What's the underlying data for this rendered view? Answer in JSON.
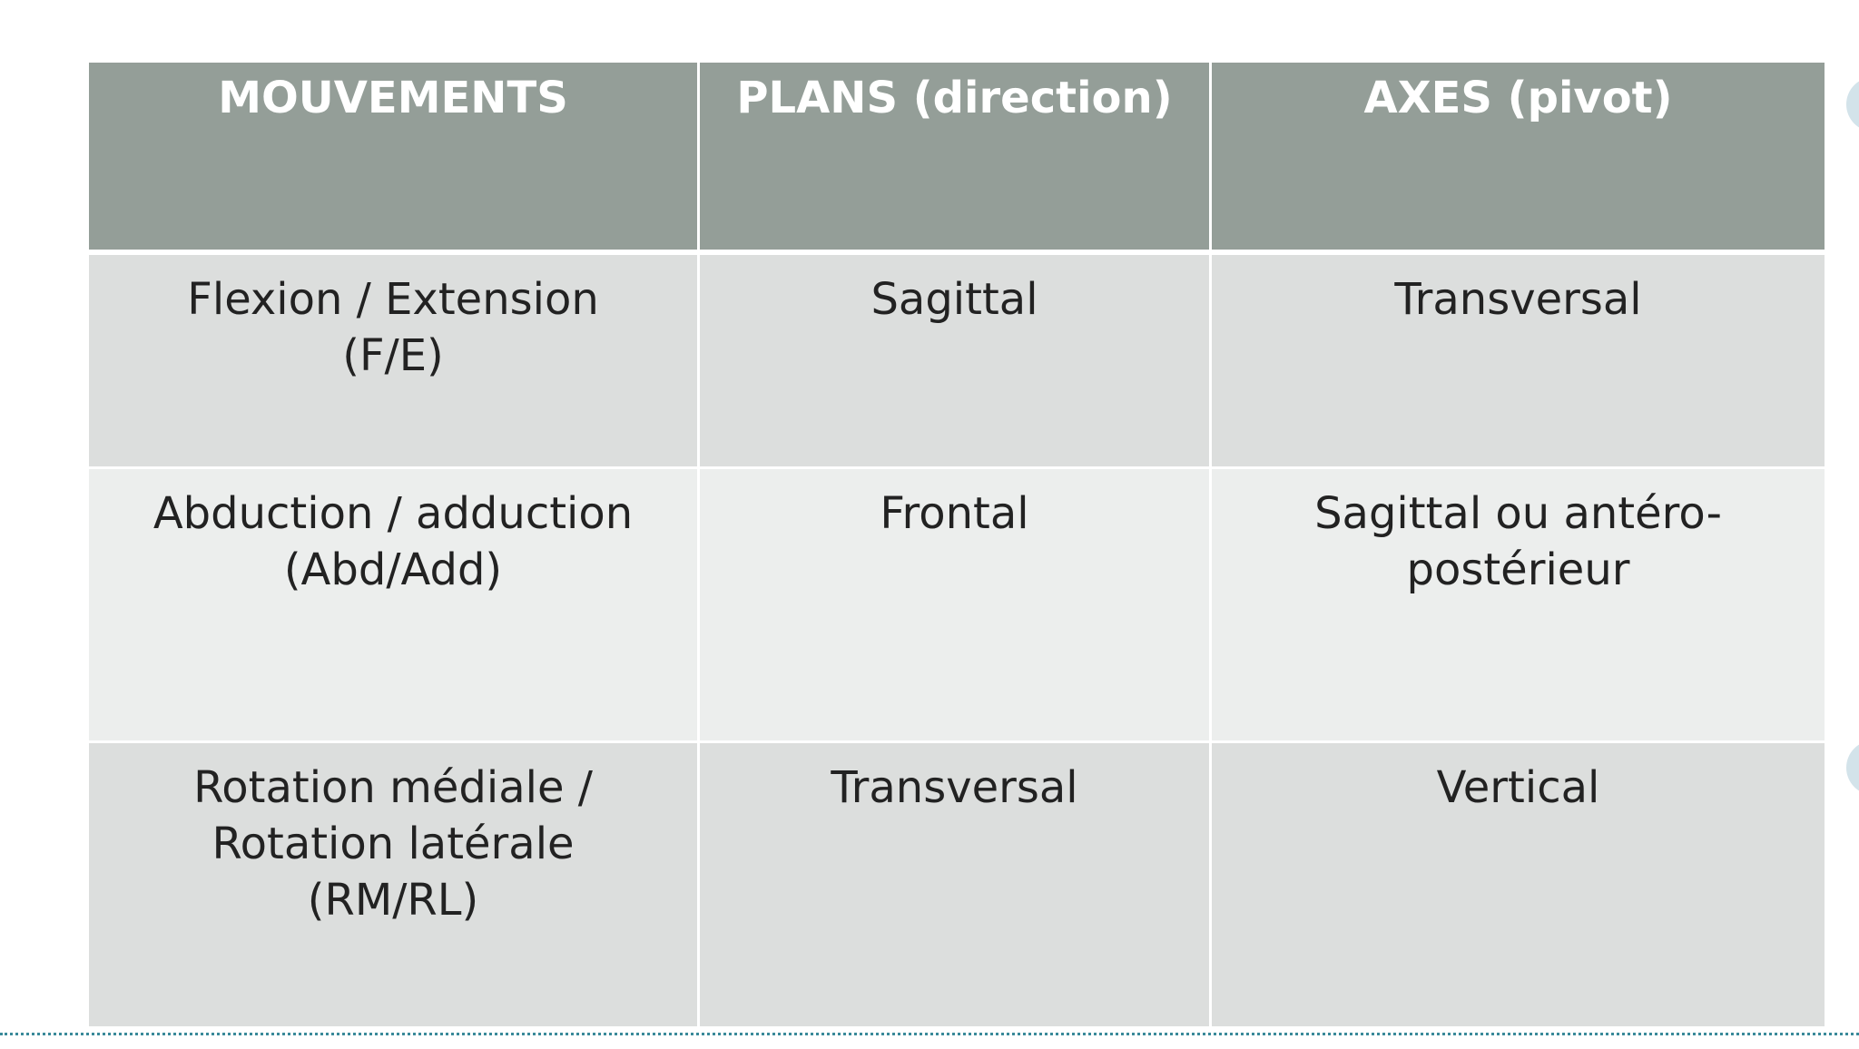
{
  "table": {
    "headers": [
      "MOUVEMENTS",
      "PLANS (direction)",
      "AXES (pivot)"
    ],
    "rows": [
      [
        "Flexion / Extension\n(F/E)",
        "Sagittal",
        "Transversal"
      ],
      [
        "Abduction / adduction\n(Abd/Add)",
        "Frontal",
        "Sagittal ou antéro-\npostérieur"
      ],
      [
        "Rotation médiale /\nRotation latérale\n(RM/RL)",
        "Transversal",
        "Vertical"
      ]
    ]
  },
  "colors": {
    "header_bg": "#949e98",
    "row_dark": "#dcdedd",
    "row_light": "#eceeed",
    "accent": "#3a8a9a"
  }
}
